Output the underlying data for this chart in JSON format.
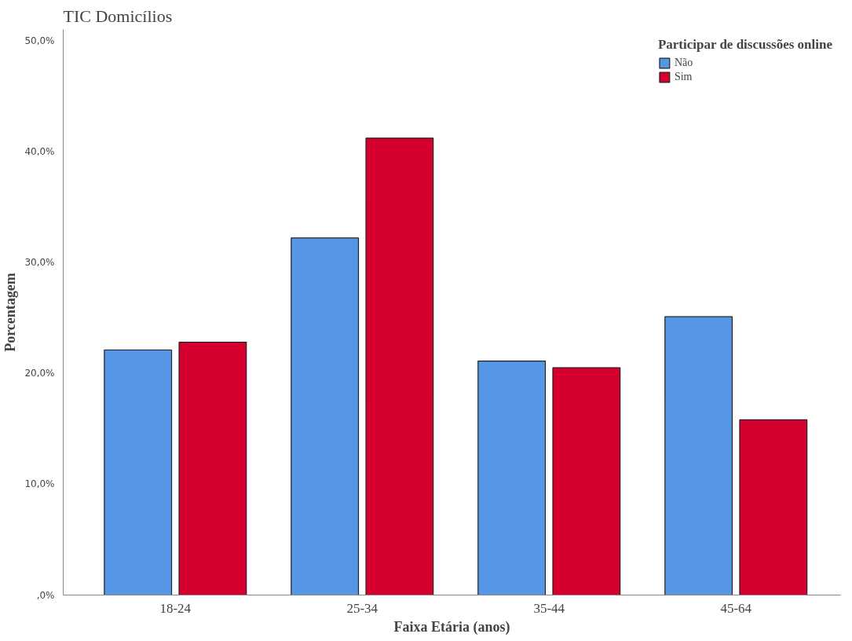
{
  "chart_data": {
    "type": "bar",
    "title": "TIC Domicílios",
    "xlabel": "Faixa Etária (anos)",
    "ylabel": "Porcentagem",
    "legend_title": "Participar de discussões online",
    "categories": [
      "18-24",
      "25-34",
      "35-44",
      "45-64"
    ],
    "series": [
      {
        "name": "Não",
        "color": "#5596e5",
        "values": [
          22.1,
          32.2,
          21.1,
          25.1
        ]
      },
      {
        "name": "Sim",
        "color": "#d6002f",
        "values": [
          22.8,
          41.2,
          20.5,
          15.8
        ]
      }
    ],
    "ylim": [
      0,
      51
    ],
    "yticks": [
      {
        "value": 0,
        "label": ",0%"
      },
      {
        "value": 10,
        "label": "10,0%"
      },
      {
        "value": 20,
        "label": "20,0%"
      },
      {
        "value": 30,
        "label": "30,0%"
      },
      {
        "value": 40,
        "label": "40,0%"
      },
      {
        "value": 50,
        "label": "50,0%"
      }
    ],
    "grid": false,
    "legend": "top right"
  }
}
